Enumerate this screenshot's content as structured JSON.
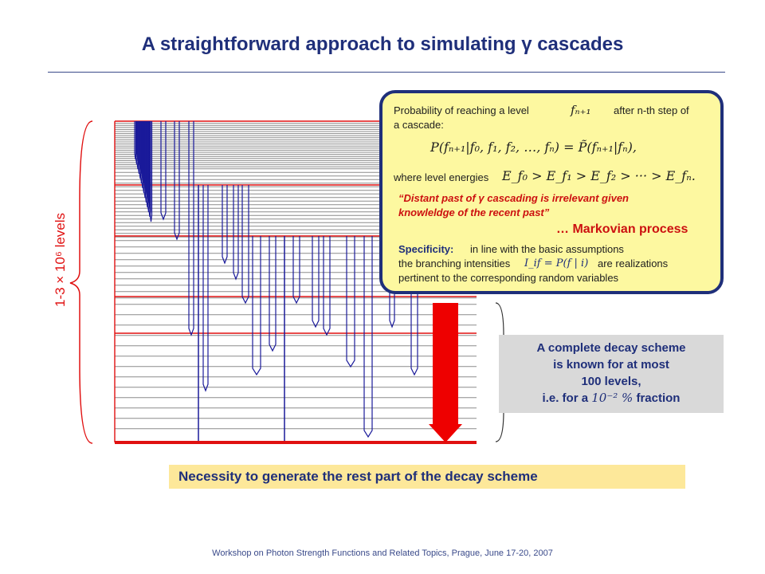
{
  "title": "A straightforward approach to simulating γ cascades",
  "side_label": "1-3 × 10⁶ levels",
  "popup": {
    "prob_pre": "Probability of reaching a level",
    "prob_var": "fₙ₊₁",
    "prob_post": "after n-th step of",
    "prob_line2": "a cascade:",
    "equation": "P(fₙ₊₁|f₀, f₁, f₂, …, fₙ) = P̃(fₙ₊₁|fₙ),",
    "energies_pre": "where level energies",
    "energies_eq": "E_f₀ > E_f₁ > E_f₂ > ··· > E_fₙ.",
    "quote_line1": "“Distant past of γ cascading is irrelevant given",
    "quote_line2": "knowleldge of the recent past”",
    "markovian": "… Markovian process",
    "spec_label": "Specificity:",
    "spec_line1": "in line with the basic assumptions",
    "spec_line2_pre": "the branching intensities",
    "spec_formula": "I_if = P(f | i)",
    "spec_line2_post": "are realizations",
    "spec_line3": "pertinent to the corresponding random variables"
  },
  "decay_box": {
    "line1": "A complete decay scheme",
    "line2": "is known for at most",
    "line3": "100 levels,",
    "line4_pre": "i.e. for a",
    "line4_math": "10⁻² %",
    "line4_post": "fraction"
  },
  "necessity_text": "Necessity to generate the rest part of the decay scheme",
  "footer": "Workshop on Photon Strength Functions and Related Topics, Prague, June 17-20, 2007",
  "colors": {
    "level_line": "#8c8c8c",
    "known_level": "#e01010",
    "transition": "#1a1a9a",
    "accent_arrow": "#ee0000",
    "title": "#1f2f7a"
  }
}
